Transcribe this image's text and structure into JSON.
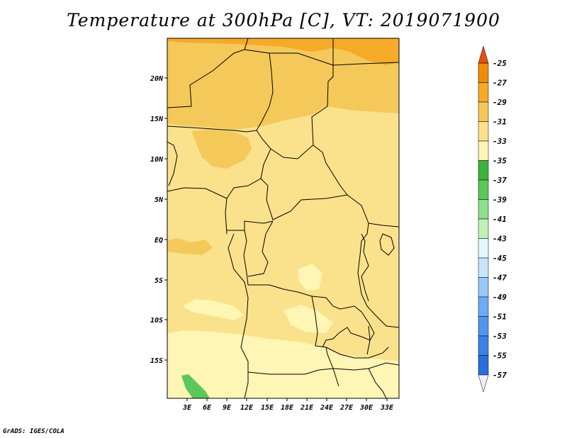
{
  "title": "Temperature at 300hPa [C], VT: 2019071900",
  "footer": "GrADS: IGES/COLA",
  "axes": {
    "lat_labels": [
      "20N",
      "15N",
      "10N",
      "5N",
      "EQ",
      "5S",
      "10S",
      "15S"
    ],
    "lon_labels": [
      "3E",
      "6E",
      "9E",
      "12E",
      "15E",
      "18E",
      "21E",
      "24E",
      "27E",
      "30E",
      "33E"
    ]
  },
  "colorbar": {
    "labels": [
      "-25",
      "-27",
      "-29",
      "-31",
      "-33",
      "-35",
      "-37",
      "-39",
      "-41",
      "-43",
      "-45",
      "-47",
      "-49",
      "-51",
      "-53",
      "-55",
      "-57"
    ],
    "colors": [
      "#f0f0fa",
      "#1a1a7a",
      "#1446b4",
      "#1e5ac8",
      "#2a6edc",
      "#3c82e6",
      "#5096f0",
      "#6eaaf5",
      "#96c8fa",
      "#c8e6fa",
      "#e6f7ff",
      "#c0f2b8",
      "#8ce08c",
      "#5ac85a",
      "#3cb43c",
      "#fff5b4",
      "#fae18c",
      "#f5c85a",
      "#f5aa28",
      "#f08c0a",
      "#e65014"
    ],
    "top_arrow_color": "#e65014",
    "bottom_arrow_color": "#f0f0fa"
  }
}
